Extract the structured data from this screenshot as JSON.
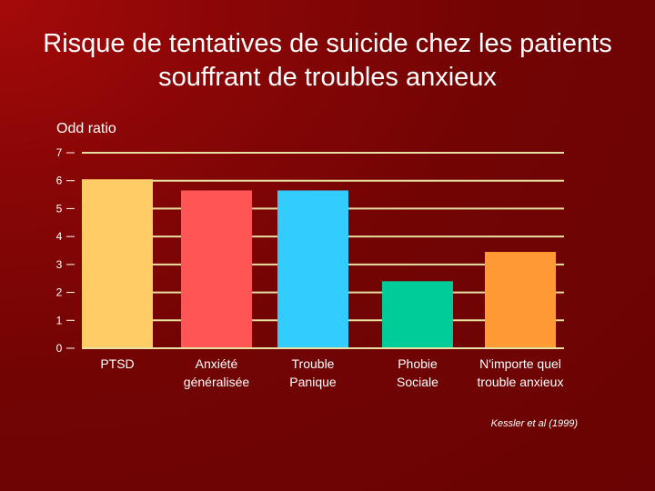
{
  "chart_data": {
    "type": "bar",
    "title": "Risque de tentatives de suicide chez les patients souffrant de troubles anxieux",
    "ylabel": "Odd ratio",
    "xlabel": "",
    "ylim": [
      0,
      7
    ],
    "yticks": [
      "0",
      "1",
      "2",
      "3",
      "4",
      "5",
      "6",
      "7"
    ],
    "grid": true,
    "categories": [
      [
        "PTSD"
      ],
      [
        "Anxiété",
        "généralisée"
      ],
      [
        "Trouble",
        "Panique"
      ],
      [
        "Phobie",
        "Sociale"
      ],
      [
        "N'importe quel",
        "trouble anxieux"
      ]
    ],
    "values": [
      6.05,
      5.65,
      5.65,
      2.4,
      3.45
    ],
    "colors": [
      "#ffcc66",
      "#ff5555",
      "#33ccff",
      "#00cc99",
      "#ff9933"
    ],
    "source": "Kessler et al (1999)"
  },
  "colors": {
    "grid": "#e8e0a0",
    "axis": "#ffffff",
    "text": "#ffffff"
  }
}
